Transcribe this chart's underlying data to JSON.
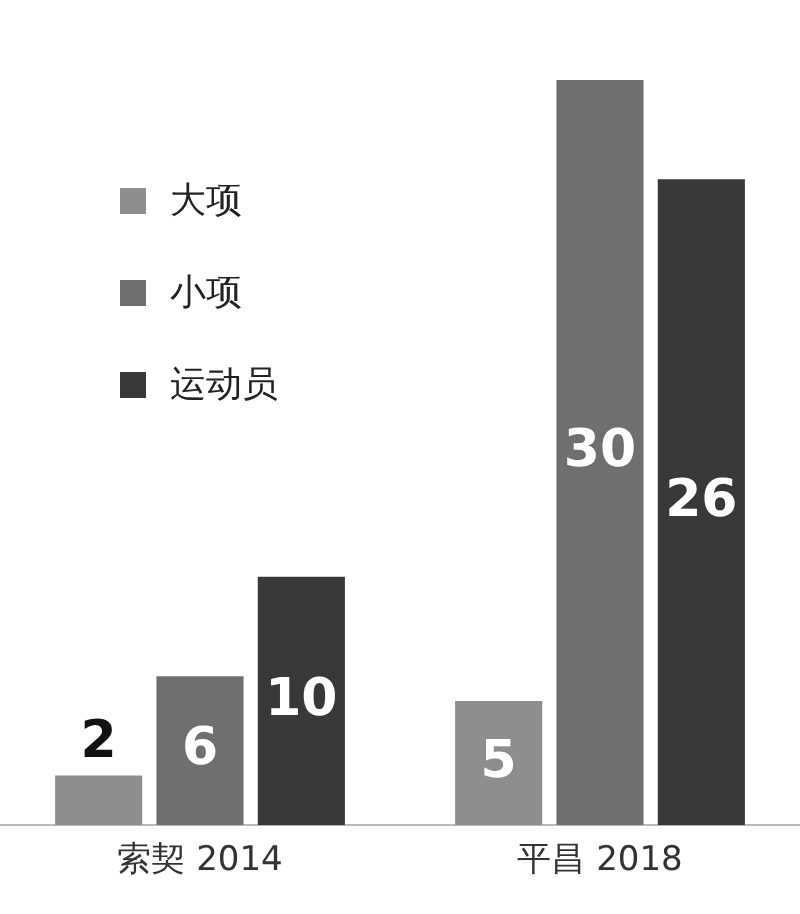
{
  "chart_data": {
    "type": "bar",
    "categories": [
      "索契 2014",
      "平昌 2018"
    ],
    "series": [
      {
        "name": "大项",
        "color": "#8e8e8e",
        "values": [
          2,
          5
        ]
      },
      {
        "name": "小项",
        "color": "#6f6f6f",
        "values": [
          6,
          30
        ]
      },
      {
        "name": "运动员",
        "color": "#383838",
        "values": [
          10,
          26
        ]
      }
    ],
    "data_labels": true,
    "legend": "top left",
    "grid": false
  }
}
